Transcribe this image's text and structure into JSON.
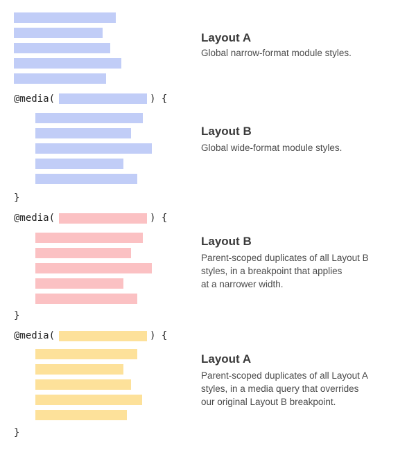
{
  "code": {
    "media_open_prefix": "@media(",
    "media_open_suffix": ") {",
    "close_brace": "}"
  },
  "sections": [
    {
      "color": "#c1cdf7",
      "title": "Layout A",
      "description": "Global narrow-format module styles."
    },
    {
      "color": "#c1cdf7",
      "title": "Layout B",
      "description": "Global wide-format module styles."
    },
    {
      "color": "#fbc1c3",
      "title": "Layout B",
      "description_lines": [
        "Parent-scoped duplicates of all Layout B",
        "styles, in a breakpoint that applies",
        "at a narrower width."
      ]
    },
    {
      "color": "#fde19a",
      "title": "Layout A",
      "description_lines": [
        "Parent-scoped duplicates of all Layout A",
        "styles, in a media query that overrides",
        "our original Layout B breakpoint."
      ]
    }
  ]
}
